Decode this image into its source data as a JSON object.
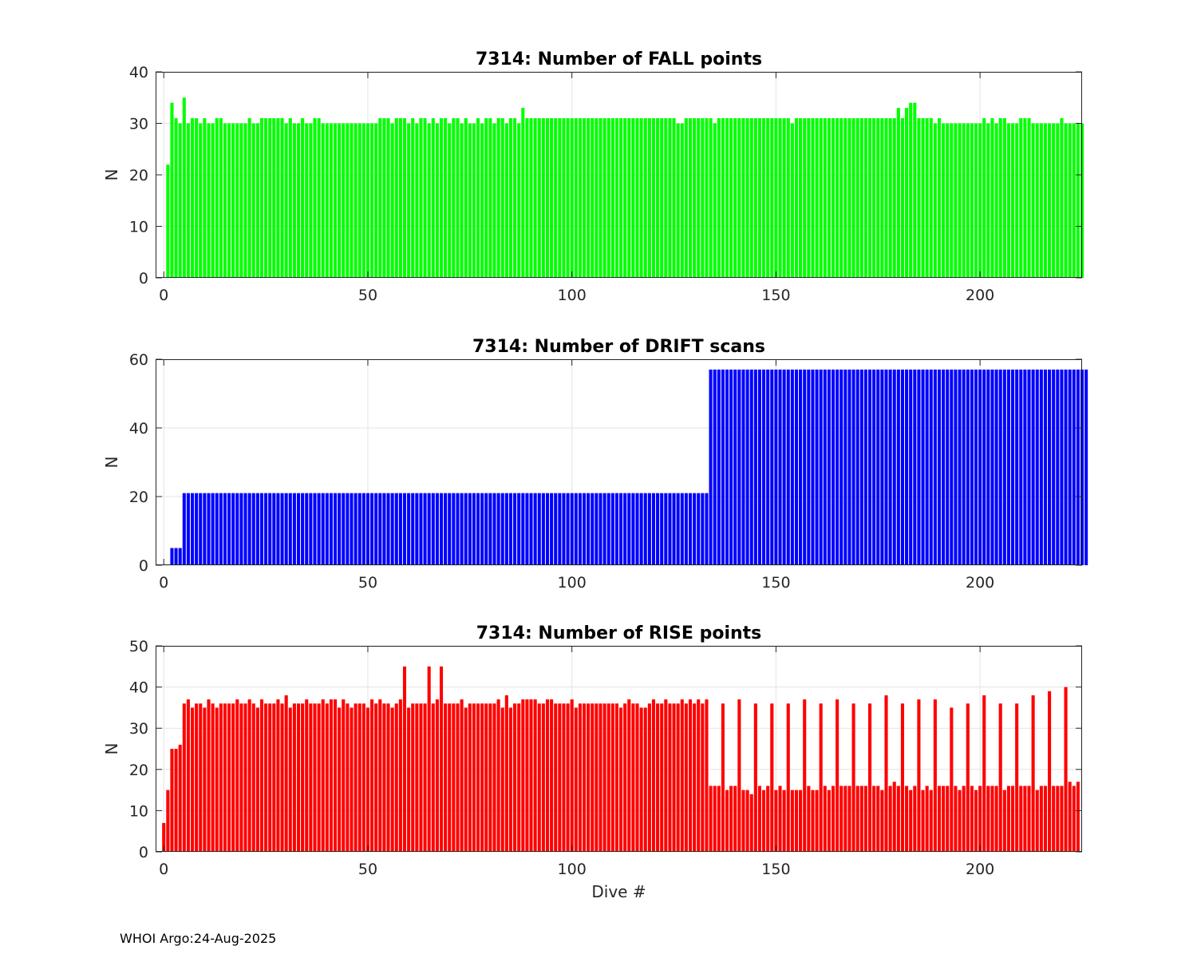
{
  "footer": "WHOI Argo:24-Aug-2025",
  "chart_data": [
    {
      "type": "bar",
      "title": "7314: Number of FALL points",
      "xlabel": "",
      "ylabel": "N",
      "xlim": [
        -2,
        225
      ],
      "ylim": [
        0,
        40
      ],
      "xticks": [
        0,
        50,
        100,
        150,
        200
      ],
      "yticks": [
        0,
        10,
        20,
        30,
        40
      ],
      "grid": true,
      "color": "#00ff00",
      "x_start": 1,
      "values": [
        22,
        34,
        31,
        30,
        35,
        30,
        31,
        31,
        30,
        31,
        30,
        30,
        31,
        31,
        30,
        30,
        30,
        30,
        30,
        30,
        31,
        30,
        30,
        31,
        31,
        31,
        31,
        31,
        31,
        30,
        31,
        30,
        30,
        31,
        30,
        30,
        31,
        31,
        30,
        30,
        30,
        30,
        30,
        30,
        30,
        30,
        30,
        30,
        30,
        30,
        30,
        30,
        31,
        31,
        31,
        30,
        31,
        31,
        31,
        30,
        31,
        30,
        31,
        31,
        30,
        31,
        30,
        31,
        31,
        30,
        31,
        31,
        30,
        31,
        30,
        30,
        31,
        30,
        31,
        31,
        30,
        31,
        31,
        30,
        31,
        31,
        30,
        33,
        31,
        31,
        31,
        31,
        31,
        31,
        31,
        31,
        31,
        31,
        31,
        31,
        31,
        31,
        31,
        31,
        31,
        31,
        31,
        31,
        31,
        31,
        31,
        31,
        31,
        31,
        31,
        31,
        31,
        31,
        31,
        31,
        31,
        31,
        31,
        31,
        31,
        30,
        30,
        31,
        31,
        31,
        31,
        31,
        31,
        31,
        30,
        31,
        31,
        31,
        31,
        31,
        31,
        31,
        31,
        31,
        31,
        31,
        31,
        31,
        31,
        31,
        31,
        31,
        31,
        30,
        31,
        31,
        31,
        31,
        31,
        31,
        31,
        31,
        31,
        31,
        31,
        31,
        31,
        31,
        31,
        31,
        31,
        31,
        31,
        31,
        31,
        31,
        31,
        31,
        31,
        33,
        31,
        33,
        34,
        34,
        31,
        31,
        31,
        31,
        30,
        31,
        30,
        30,
        30,
        30,
        30,
        30,
        30,
        30,
        30,
        30,
        31,
        30,
        31,
        30,
        31,
        31,
        30,
        30,
        30,
        31,
        31,
        31,
        30,
        30,
        30,
        30,
        30,
        30,
        30,
        31,
        30,
        30,
        30,
        30,
        30
      ]
    },
    {
      "type": "bar",
      "title": "7314: Number of DRIFT scans",
      "xlabel": "",
      "ylabel": "N",
      "xlim": [
        -2,
        225
      ],
      "ylim": [
        0,
        60
      ],
      "xticks": [
        0,
        50,
        100,
        150,
        200
      ],
      "yticks": [
        0,
        20,
        40,
        60
      ],
      "grid": true,
      "color": "#0000ff",
      "x_start": 1,
      "values": [
        0,
        5,
        5,
        5,
        21,
        21,
        21,
        21,
        21,
        21,
        21,
        21,
        21,
        21,
        21,
        21,
        21,
        21,
        21,
        21,
        21,
        21,
        21,
        21,
        21,
        21,
        21,
        21,
        21,
        21,
        21,
        21,
        21,
        21,
        21,
        21,
        21,
        21,
        21,
        21,
        21,
        21,
        21,
        21,
        21,
        21,
        21,
        21,
        21,
        21,
        21,
        21,
        21,
        21,
        21,
        21,
        21,
        21,
        21,
        21,
        21,
        21,
        21,
        21,
        21,
        21,
        21,
        21,
        21,
        21,
        21,
        21,
        21,
        21,
        21,
        21,
        21,
        21,
        21,
        21,
        21,
        21,
        21,
        21,
        21,
        21,
        21,
        21,
        21,
        21,
        21,
        21,
        21,
        21,
        21,
        21,
        21,
        21,
        21,
        21,
        21,
        21,
        21,
        21,
        21,
        21,
        21,
        21,
        21,
        21,
        21,
        21,
        21,
        21,
        21,
        21,
        21,
        21,
        21,
        21,
        21,
        21,
        21,
        21,
        21,
        21,
        21,
        21,
        21,
        21,
        21,
        21,
        21,
        57,
        57,
        57,
        57,
        57,
        57,
        57,
        57,
        57,
        57,
        57,
        57,
        57,
        57,
        57,
        57,
        57,
        57,
        57,
        57,
        57,
        57,
        57,
        57,
        57,
        57,
        57,
        57,
        57,
        57,
        57,
        57,
        57,
        57,
        57,
        57,
        57,
        57,
        57,
        57,
        57,
        57,
        57,
        57,
        57,
        57,
        57,
        57,
        57,
        57,
        57,
        57,
        57,
        57,
        57,
        57,
        57,
        57,
        57,
        57,
        57,
        57,
        57,
        57,
        57,
        57,
        57,
        57,
        57,
        57,
        57,
        57,
        57,
        57,
        57,
        57,
        57,
        57,
        57,
        57,
        57,
        57,
        57,
        57,
        57,
        57,
        57,
        57,
        57,
        57,
        57,
        57,
        57
      ]
    },
    {
      "type": "bar",
      "title": "7314: Number of RISE points",
      "xlabel": "Dive #",
      "ylabel": "N",
      "xlim": [
        -2,
        225
      ],
      "ylim": [
        0,
        50
      ],
      "xticks": [
        0,
        50,
        100,
        150,
        200
      ],
      "yticks": [
        0,
        10,
        20,
        30,
        40,
        50
      ],
      "grid": true,
      "color": "#ff0000",
      "x_start": 0,
      "values": [
        7,
        15,
        25,
        25,
        26,
        36,
        37,
        35,
        36,
        36,
        35,
        37,
        36,
        35,
        36,
        36,
        36,
        36,
        37,
        36,
        36,
        37,
        36,
        35,
        37,
        36,
        36,
        36,
        37,
        36,
        38,
        35,
        36,
        36,
        36,
        37,
        36,
        36,
        36,
        37,
        36,
        37,
        37,
        35,
        37,
        36,
        35,
        36,
        36,
        36,
        35,
        37,
        36,
        37,
        36,
        36,
        35,
        36,
        37,
        45,
        35,
        36,
        36,
        36,
        36,
        45,
        36,
        37,
        45,
        36,
        36,
        36,
        36,
        37,
        35,
        36,
        36,
        36,
        36,
        36,
        36,
        36,
        37,
        35,
        38,
        35,
        36,
        36,
        37,
        37,
        37,
        37,
        36,
        36,
        37,
        37,
        36,
        36,
        36,
        36,
        37,
        35,
        36,
        36,
        36,
        36,
        36,
        36,
        36,
        36,
        36,
        36,
        35,
        36,
        37,
        36,
        36,
        35,
        35,
        36,
        37,
        36,
        36,
        37,
        36,
        36,
        36,
        37,
        36,
        37,
        36,
        37,
        36,
        37,
        16,
        16,
        16,
        36,
        15,
        16,
        16,
        37,
        15,
        15,
        14,
        36,
        16,
        15,
        16,
        36,
        15,
        16,
        15,
        36,
        15,
        15,
        15,
        37,
        16,
        15,
        15,
        36,
        16,
        15,
        16,
        37,
        16,
        16,
        16,
        36,
        16,
        16,
        16,
        36,
        16,
        16,
        15,
        38,
        16,
        17,
        16,
        36,
        16,
        15,
        16,
        37,
        15,
        16,
        15,
        37,
        16,
        16,
        16,
        35,
        16,
        15,
        16,
        36,
        16,
        15,
        16,
        38,
        16,
        16,
        16,
        36,
        15,
        16,
        16,
        36,
        16,
        16,
        16,
        38,
        15,
        16,
        16,
        39,
        16,
        16,
        16,
        40,
        17,
        16,
        17
      ]
    }
  ]
}
